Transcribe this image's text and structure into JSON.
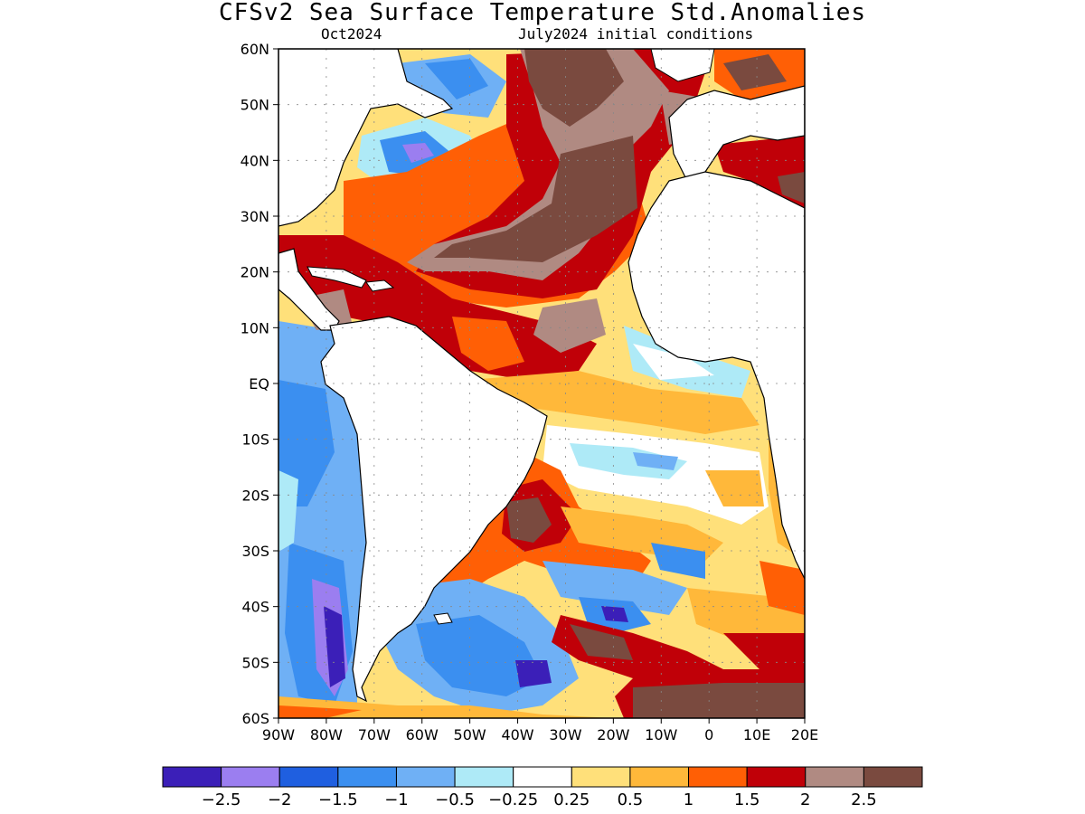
{
  "header": {
    "title": "CFSv2 Sea Surface Temperature Std.Anomalies",
    "subtitle_left": "Oct2024",
    "subtitle_right": "July2024 initial conditions"
  },
  "map": {
    "lat_labels": [
      "60N",
      "50N",
      "40N",
      "30N",
      "20N",
      "10N",
      "EQ",
      "10S",
      "20S",
      "30S",
      "40S",
      "50S",
      "60S"
    ],
    "lon_labels": [
      "90W",
      "80W",
      "70W",
      "60W",
      "50W",
      "40W",
      "30W",
      "20W",
      "10W",
      "0",
      "10E",
      "20E"
    ],
    "land_color": "#ffffff",
    "coastline_color": "#000000"
  },
  "colorbar": {
    "colors": [
      "#3b1fb8",
      "#9b7ef0",
      "#1f5fe0",
      "#3b8ff0",
      "#6fb0f5",
      "#aeeaf7",
      "#ffffff",
      "#ffe07a",
      "#ffb83a",
      "#ff5f05",
      "#c00008",
      "#b08a82",
      "#7a4a3f"
    ],
    "labels": [
      "−2.5",
      "−2",
      "−1.5",
      "−1",
      "−0.5",
      "−0.25",
      "0.25",
      "0.5",
      "1",
      "1.5",
      "2",
      "2.5"
    ]
  }
}
